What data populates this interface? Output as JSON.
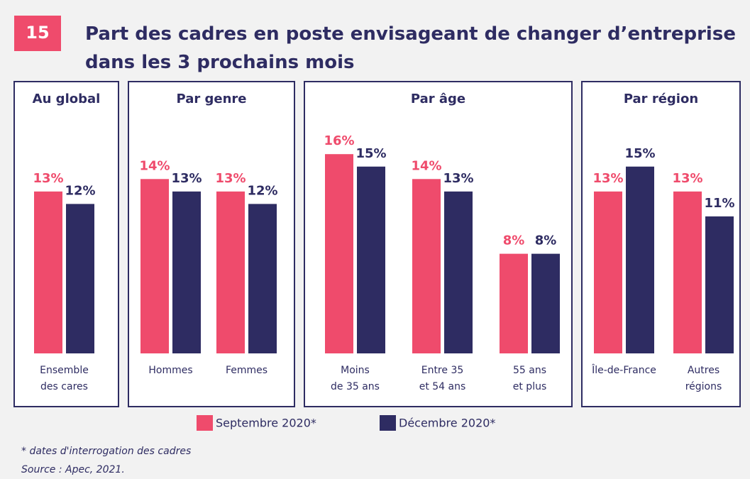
{
  "figure_number": "15",
  "title": "Part des cadres en poste envisageant de changer d’entreprise\ndans les 3 prochains mois",
  "legend": [
    {
      "name": "Septembre 2020*",
      "color": "#ef4b6c"
    },
    {
      "name": "Décembre 2020*",
      "color": "#2e2c62"
    }
  ],
  "chart_data": [
    {
      "type": "bar",
      "title": "Au global",
      "categories": [
        "Ensemble\ndes cares"
      ],
      "series": [
        {
          "values": [
            13
          ],
          "value_labels": [
            "13%"
          ]
        },
        {
          "values": [
            12
          ],
          "value_labels": [
            "12%"
          ]
        }
      ]
    },
    {
      "type": "bar",
      "title": "Par genre",
      "categories": [
        "Hommes",
        "Femmes"
      ],
      "series": [
        {
          "values": [
            14,
            13
          ],
          "value_labels": [
            "14%",
            "13%"
          ]
        },
        {
          "values": [
            13,
            12
          ],
          "value_labels": [
            "13%",
            "12%"
          ]
        }
      ]
    },
    {
      "type": "bar",
      "title": "Par âge",
      "categories": [
        "Moins\nde 35 ans",
        "Entre 35\net 54 ans",
        "55 ans\net plus"
      ],
      "series": [
        {
          "values": [
            16,
            14,
            8
          ],
          "value_labels": [
            "16%",
            "14%",
            "8%"
          ]
        },
        {
          "values": [
            15,
            13,
            8
          ],
          "value_labels": [
            "15%",
            "13%",
            "8%"
          ]
        }
      ]
    },
    {
      "type": "bar",
      "title": "Par région",
      "categories": [
        "Île-de-France",
        "Autres\nrégions"
      ],
      "series": [
        {
          "values": [
            13,
            13
          ],
          "value_labels": [
            "13%",
            "13%"
          ]
        },
        {
          "values": [
            15,
            11
          ],
          "value_labels": [
            "15%",
            "11%"
          ]
        }
      ]
    }
  ],
  "footnote": "* dates d'interrogation des cadres",
  "source": "Source : Apec, 2021."
}
